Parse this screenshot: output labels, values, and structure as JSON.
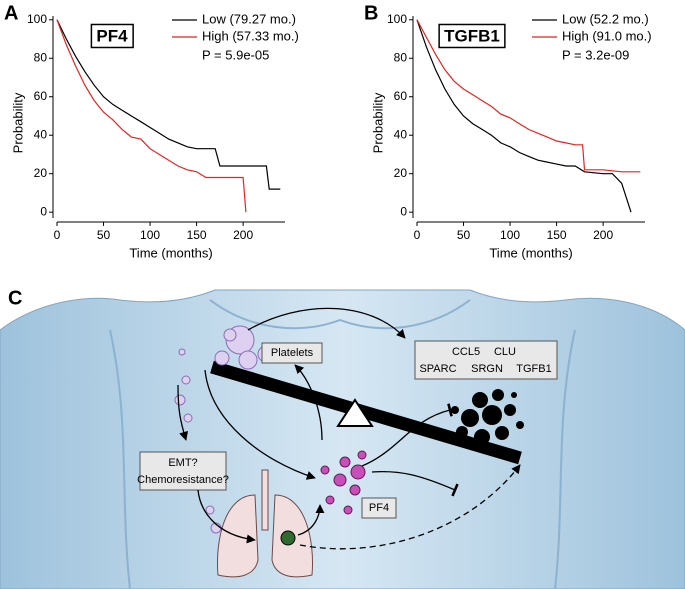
{
  "chart_data": [
    {
      "type": "line",
      "panel": "A",
      "title": "PF4",
      "annotation": "P = 5.9e-05",
      "x_label": "Time (months)",
      "y_label": "Probability",
      "xlim": [
        0,
        245
      ],
      "ylim": [
        -3,
        102
      ],
      "xticks": [
        0,
        50,
        100,
        150,
        200
      ],
      "yticks": [
        0,
        20,
        40,
        60,
        80,
        100
      ],
      "series": [
        {
          "name": "Low (79.27 mo.)",
          "color": "#000000",
          "x": [
            0,
            10,
            20,
            30,
            40,
            50,
            60,
            70,
            80,
            90,
            100,
            110,
            120,
            130,
            140,
            150,
            160,
            170,
            175,
            200,
            225,
            228,
            240
          ],
          "values": [
            100,
            90,
            81,
            73,
            66,
            60,
            56,
            53,
            50,
            47,
            44,
            41,
            38,
            36,
            34,
            33,
            33,
            33,
            24,
            24,
            24,
            12,
            12
          ]
        },
        {
          "name": "High (57.33 mo.)",
          "color": "#e8231f",
          "x": [
            0,
            10,
            20,
            30,
            40,
            50,
            60,
            70,
            80,
            90,
            100,
            110,
            120,
            130,
            140,
            150,
            160,
            170,
            180,
            200,
            203
          ],
          "values": [
            100,
            87,
            76,
            66,
            58,
            52,
            48,
            43,
            39,
            38,
            33,
            30,
            27,
            24,
            22,
            21,
            18,
            18,
            18,
            18,
            0
          ]
        }
      ]
    },
    {
      "type": "line",
      "panel": "B",
      "title": "TGFB1",
      "annotation": "P = 3.2e-09",
      "x_label": "Time (months)",
      "y_label": "Probability",
      "xlim": [
        0,
        245
      ],
      "ylim": [
        -3,
        102
      ],
      "xticks": [
        0,
        50,
        100,
        150,
        200
      ],
      "yticks": [
        0,
        20,
        40,
        60,
        80,
        100
      ],
      "series": [
        {
          "name": "Low (52.2 mo.)",
          "color": "#000000",
          "x": [
            0,
            10,
            20,
            30,
            40,
            50,
            60,
            70,
            80,
            90,
            100,
            110,
            120,
            130,
            140,
            150,
            160,
            170,
            180,
            200,
            210,
            220,
            230
          ],
          "values": [
            100,
            86,
            74,
            64,
            56,
            50,
            46,
            43,
            40,
            36,
            34,
            31,
            29,
            27,
            26,
            25,
            24,
            24,
            21,
            20,
            20,
            15,
            0
          ]
        },
        {
          "name": "High (91.0 mo.)",
          "color": "#e8231f",
          "x": [
            0,
            10,
            20,
            30,
            40,
            50,
            60,
            70,
            80,
            90,
            100,
            110,
            120,
            130,
            140,
            150,
            160,
            170,
            178,
            180,
            200,
            220,
            240
          ],
          "values": [
            100,
            91,
            82,
            74,
            68,
            64,
            61,
            58,
            55,
            51,
            49,
            46,
            43,
            41,
            39,
            37,
            36,
            35,
            35,
            22,
            22,
            21,
            21
          ]
        }
      ]
    }
  ],
  "diagram": {
    "panel": "C",
    "platelets": "Platelets",
    "genes": [
      "CCL5",
      "CLU",
      "SPARC",
      "SRGN",
      "TGFB1"
    ],
    "question": [
      "EMT?",
      "Chemoresistance?"
    ],
    "pf4": "PF4"
  }
}
